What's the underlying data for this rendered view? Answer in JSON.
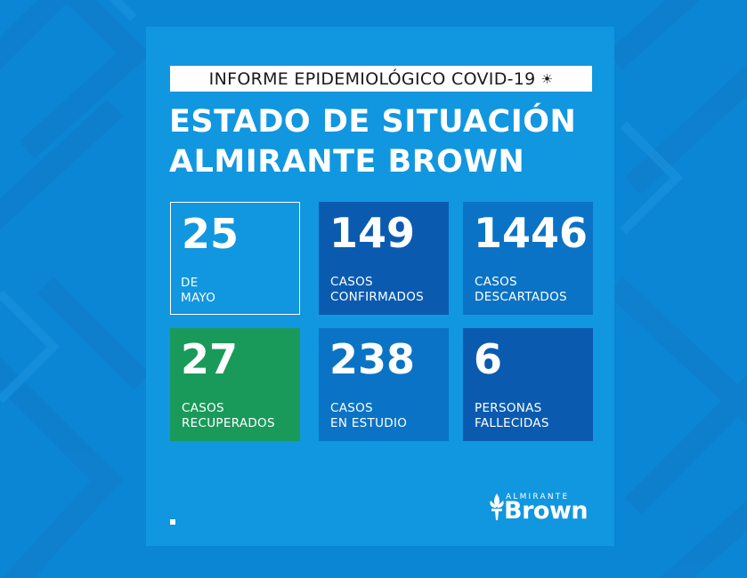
{
  "header": {
    "label": "INFORME EPIDEMIOLÓGICO COVID-19",
    "title_line1": "ESTADO DE SITUACIÓN",
    "title_line2": "ALMIRANTE BROWN"
  },
  "cards": [
    {
      "value": "25",
      "line1": "DE",
      "line2": "MAYO",
      "color": "#1196e0"
    },
    {
      "value": "149",
      "line1": "CASOS",
      "line2": "CONFIRMADOS",
      "color": "#0a5bb0"
    },
    {
      "value": "1446",
      "line1": "CASOS",
      "line2": "DESCARTADOS",
      "color": "#0a73c6"
    },
    {
      "value": "27",
      "line1": "CASOS",
      "line2": "RECUPERADOS",
      "color": "#1a9a5a"
    },
    {
      "value": "238",
      "line1": "CASOS",
      "line2": "EN ESTUDIO",
      "color": "#0a73c6"
    },
    {
      "value": "6",
      "line1": "PERSONAS",
      "line2": "FALLECIDAS",
      "color": "#0a5bb0"
    }
  ],
  "logo": {
    "small": "ALMIRANTE",
    "big": "Brown"
  },
  "icons": {
    "header": "sun-icon",
    "logo": "fleur-de-lis-icon"
  },
  "colors": {
    "background": "#0a86d4",
    "panel": "#1196e0"
  }
}
